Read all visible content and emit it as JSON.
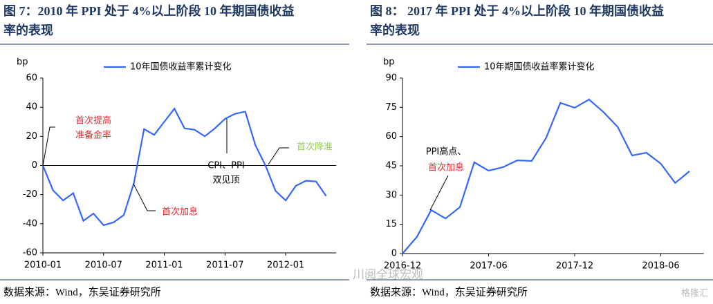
{
  "charts": [
    {
      "title": [
        "图 7：2010 年 PPI 处于 4%以上阶段 10 年期国债收益",
        "率的表现"
      ],
      "source": "数据来源：Wind，东吴证券研究所",
      "chart_data": {
        "type": "line",
        "y_unit": "bp",
        "categories": [
          "2010-01",
          null,
          null,
          null,
          null,
          null,
          "2010-07",
          null,
          null,
          null,
          null,
          null,
          "2011-01",
          null,
          null,
          null,
          null,
          null,
          "2011-07",
          null,
          null,
          null,
          null,
          null,
          "2012-01",
          null,
          null,
          null,
          null
        ],
        "series": [
          {
            "name": "10年国债收益率累计变化",
            "color": "#3366ff",
            "values": [
              0,
              -17,
              -24,
              -19,
              -38,
              -33,
              -41,
              -39,
              -34,
              -12,
              25,
              21,
              30,
              39,
              25.5,
              24.5,
              20,
              25.5,
              32,
              35.5,
              37,
              14,
              0,
              -17.5,
              -24,
              -14,
              -10.5,
              -11,
              -21
            ]
          }
        ],
        "ylim": [
          -60,
          60
        ],
        "yticks": [
          -60,
          -40,
          -20,
          0,
          20,
          40,
          60
        ],
        "annotations": [
          {
            "lines": [
              "首次提高",
              "准备金率"
            ],
            "color": "#e8262b"
          },
          {
            "lines": [
              "首次加息"
            ],
            "color": "#e8262b"
          },
          {
            "lines": [
              "CPI、PPI",
              "双见顶"
            ],
            "color": "#000000"
          },
          {
            "lines": [
              "首次降准"
            ],
            "color": "#92d050"
          }
        ]
      }
    },
    {
      "title": [
        "图 8：  2017 年 PPI 处于 4%以上阶段 10 年期国债收益",
        "率的表现"
      ],
      "source": "数据来源：Wind，东吴证券研究所",
      "chart_data": {
        "type": "line",
        "y_unit": "bp",
        "categories": [
          "2016-12",
          null,
          null,
          null,
          null,
          null,
          "2017-06",
          null,
          null,
          null,
          null,
          null,
          "2017-12",
          null,
          null,
          null,
          null,
          null,
          "2018-06",
          null,
          null
        ],
        "series": [
          {
            "name": "10年期国债收益率累计变化",
            "color": "#3366ff",
            "values": [
              0,
              8.5,
              22.3,
              18,
              23.8,
              46.8,
              42.5,
              44.3,
              47.8,
              47.5,
              59.2,
              77.3,
              74.8,
              79,
              72.6,
              64.9,
              50.3,
              51.7,
              46.1,
              36.2,
              42.2
            ]
          }
        ],
        "ylim": [
          0,
          90
        ],
        "yticks": [
          0,
          15,
          30,
          45,
          60,
          75,
          90
        ],
        "annotations": [
          {
            "lines": [
              "PPI高点、"
            ],
            "color": "#000000"
          },
          {
            "lines": [
              "首次加息"
            ],
            "color": "#e8262b"
          }
        ]
      }
    }
  ],
  "watermark": "川阅全球宏观",
  "watermark2": "格隆汇"
}
